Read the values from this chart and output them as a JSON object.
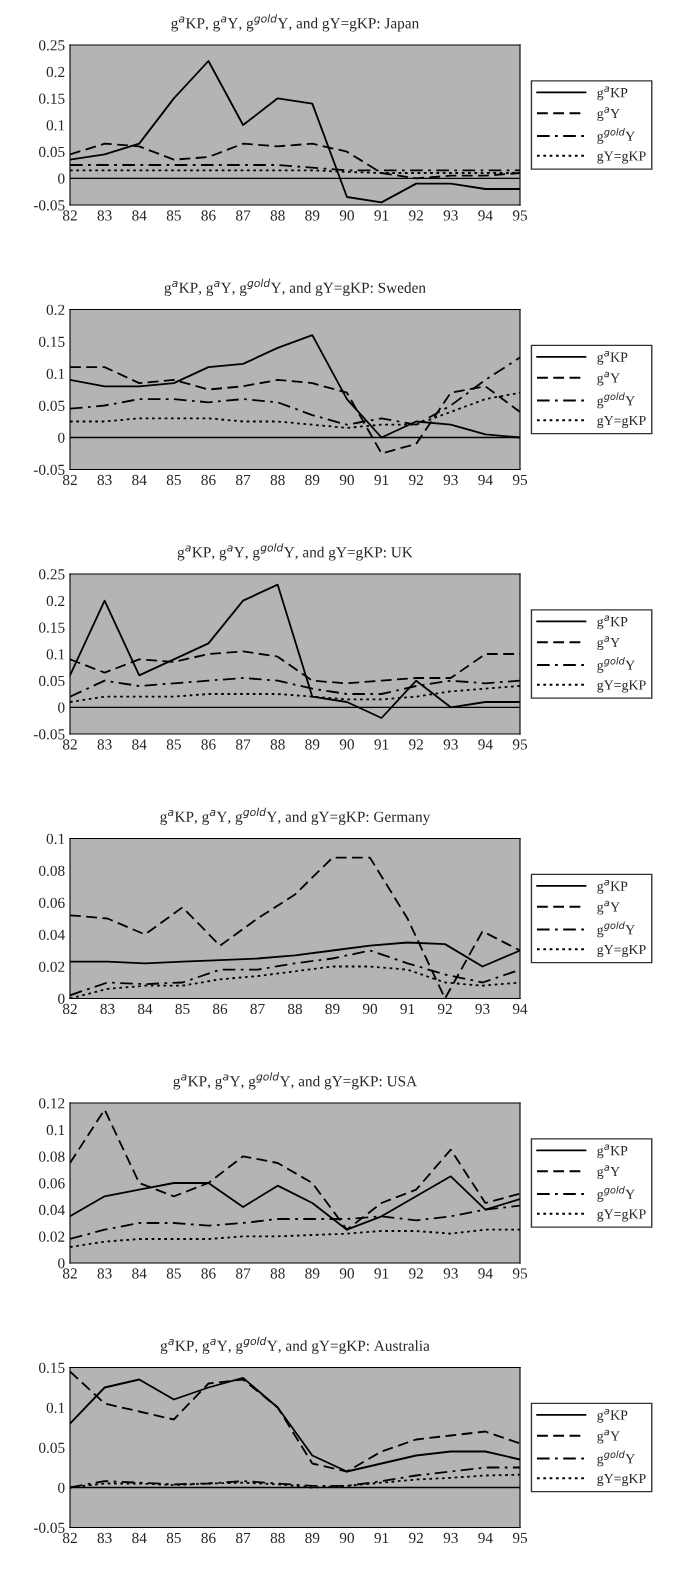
{
  "chart_data": [
    {
      "type": "line",
      "title": "g$^{a}$KP, g$^{a}$Y, g$^{gold}$Y, and gY=gKP: Japan",
      "categories": [
        "82",
        "83",
        "84",
        "85",
        "86",
        "87",
        "88",
        "89",
        "90",
        "91",
        "92",
        "93",
        "94",
        "95"
      ],
      "ylim": [
        -0.05,
        0.25
      ],
      "yticks": [
        -0.05,
        0,
        0.05,
        0.1,
        0.15,
        0.2,
        0.25
      ],
      "legend": "right",
      "ref_lines": [
        {
          "axis": "y",
          "value": 0,
          "color": "#000000"
        }
      ],
      "series": [
        {
          "name": "g$^{a}$KP",
          "color": "#000000",
          "line_style": "solid",
          "values": [
            0.035,
            0.045,
            0.065,
            0.15,
            0.22,
            0.1,
            0.15,
            0.14,
            -0.035,
            -0.045,
            -0.01,
            -0.01,
            -0.02,
            -0.02
          ]
        },
        {
          "name": "g$^{a}$Y",
          "color": "#000000",
          "line_style": "dashed",
          "values": [
            0.045,
            0.065,
            0.06,
            0.035,
            0.04,
            0.065,
            0.06,
            0.065,
            0.05,
            0.01,
            0.0,
            0.005,
            0.005,
            0.01
          ]
        },
        {
          "name": "g$^{gold}$Y",
          "color": "#000000",
          "line_style": "dashdot",
          "values": [
            0.025,
            0.025,
            0.025,
            0.025,
            0.025,
            0.025,
            0.025,
            0.02,
            0.015,
            0.015,
            0.015,
            0.015,
            0.015,
            0.015
          ]
        },
        {
          "name": "gY=gKP",
          "color": "#000000",
          "line_style": "dotted",
          "values": [
            0.015,
            0.015,
            0.015,
            0.015,
            0.015,
            0.015,
            0.015,
            0.015,
            0.012,
            0.01,
            0.01,
            0.01,
            0.01,
            0.01
          ]
        }
      ]
    },
    {
      "type": "line",
      "title": "g$^{a}$KP, g$^{a}$Y, g$^{gold}$Y, and gY=gKP: Sweden",
      "categories": [
        "82",
        "83",
        "84",
        "85",
        "86",
        "87",
        "88",
        "89",
        "90",
        "91",
        "92",
        "93",
        "94",
        "95"
      ],
      "ylim": [
        -0.05,
        0.2
      ],
      "yticks": [
        -0.05,
        0,
        0.05,
        0.1,
        0.15,
        0.2
      ],
      "legend": "right",
      "ref_lines": [
        {
          "axis": "y",
          "value": 0,
          "color": "#000000"
        }
      ],
      "series": [
        {
          "name": "g$^{a}$KP",
          "color": "#000000",
          "line_style": "solid",
          "values": [
            0.09,
            0.08,
            0.08,
            0.085,
            0.11,
            0.115,
            0.14,
            0.16,
            0.06,
            0.0,
            0.025,
            0.02,
            0.005,
            0.0
          ]
        },
        {
          "name": "g$^{a}$Y",
          "color": "#000000",
          "line_style": "dashed",
          "values": [
            0.11,
            0.11,
            0.085,
            0.09,
            0.075,
            0.08,
            0.09,
            0.085,
            0.07,
            -0.025,
            -0.01,
            0.07,
            0.08,
            0.04
          ]
        },
        {
          "name": "g$^{gold}$Y",
          "color": "#000000",
          "line_style": "dashdot",
          "values": [
            0.045,
            0.05,
            0.06,
            0.06,
            0.055,
            0.06,
            0.055,
            0.035,
            0.02,
            0.03,
            0.02,
            0.05,
            0.09,
            0.125
          ]
        },
        {
          "name": "gY=gKP",
          "color": "#000000",
          "line_style": "dotted",
          "values": [
            0.025,
            0.025,
            0.03,
            0.03,
            0.03,
            0.025,
            0.025,
            0.02,
            0.015,
            0.02,
            0.02,
            0.04,
            0.06,
            0.07
          ]
        }
      ]
    },
    {
      "type": "line",
      "title": "g$^{a}$KP, g$^{a}$Y, g$^{gold}$Y, and gY=gKP: UK",
      "categories": [
        "82",
        "83",
        "84",
        "85",
        "86",
        "87",
        "88",
        "89",
        "90",
        "91",
        "92",
        "93",
        "94",
        "95"
      ],
      "ylim": [
        -0.05,
        0.25
      ],
      "yticks": [
        -0.05,
        0,
        0.05,
        0.1,
        0.15,
        0.2,
        0.25
      ],
      "legend": "right",
      "ref_lines": [
        {
          "axis": "y",
          "value": 0,
          "color": "#000000"
        }
      ],
      "series": [
        {
          "name": "g$^{a}$KP",
          "color": "#000000",
          "line_style": "solid",
          "values": [
            0.06,
            0.2,
            0.06,
            0.09,
            0.12,
            0.2,
            0.23,
            0.02,
            0.01,
            -0.02,
            0.05,
            0.0,
            0.01,
            0.01
          ]
        },
        {
          "name": "g$^{a}$Y",
          "color": "#000000",
          "line_style": "dashed",
          "values": [
            0.09,
            0.065,
            0.09,
            0.085,
            0.1,
            0.105,
            0.095,
            0.05,
            0.045,
            0.05,
            0.055,
            0.055,
            0.1,
            0.1
          ]
        },
        {
          "name": "g$^{gold}$Y",
          "color": "#000000",
          "line_style": "dashdot",
          "values": [
            0.02,
            0.05,
            0.04,
            0.045,
            0.05,
            0.055,
            0.05,
            0.035,
            0.025,
            0.025,
            0.04,
            0.05,
            0.045,
            0.05
          ]
        },
        {
          "name": "gY=gKP",
          "color": "#000000",
          "line_style": "dotted",
          "values": [
            0.01,
            0.02,
            0.02,
            0.02,
            0.025,
            0.025,
            0.025,
            0.02,
            0.015,
            0.015,
            0.02,
            0.03,
            0.035,
            0.04
          ]
        }
      ]
    },
    {
      "type": "line",
      "title": "g$^{a}$KP, g$^{a}$Y, g$^{gold}$Y, and gY=gKP: Germany",
      "categories": [
        "82",
        "83",
        "84",
        "85",
        "86",
        "87",
        "88",
        "89",
        "90",
        "91",
        "92",
        "93",
        "94"
      ],
      "ylim": [
        0,
        0.1
      ],
      "yticks": [
        0,
        0.02,
        0.04,
        0.06,
        0.08,
        0.1
      ],
      "legend": "right",
      "series": [
        {
          "name": "g$^{a}$KP",
          "color": "#000000",
          "line_style": "solid",
          "values": [
            0.023,
            0.023,
            0.022,
            0.023,
            0.024,
            0.025,
            0.027,
            0.03,
            0.033,
            0.035,
            0.034,
            0.02,
            0.03
          ]
        },
        {
          "name": "g$^{a}$Y",
          "color": "#000000",
          "line_style": "dashed",
          "values": [
            0.052,
            0.05,
            0.04,
            0.057,
            0.033,
            0.05,
            0.065,
            0.088,
            0.088,
            0.05,
            0.0,
            0.042,
            0.03
          ]
        },
        {
          "name": "g$^{gold}$Y",
          "color": "#000000",
          "line_style": "dashdot",
          "values": [
            0.002,
            0.01,
            0.009,
            0.01,
            0.018,
            0.018,
            0.022,
            0.025,
            0.03,
            0.022,
            0.015,
            0.01,
            0.018
          ]
        },
        {
          "name": "gY=gKP",
          "color": "#000000",
          "line_style": "dotted",
          "values": [
            0.0,
            0.006,
            0.008,
            0.008,
            0.012,
            0.014,
            0.017,
            0.02,
            0.02,
            0.018,
            0.01,
            0.008,
            0.01
          ]
        }
      ]
    },
    {
      "type": "line",
      "title": "g$^{a}$KP, g$^{a}$Y, g$^{gold}$Y, and gY=gKP: USA",
      "categories": [
        "82",
        "83",
        "84",
        "85",
        "86",
        "87",
        "88",
        "89",
        "90",
        "91",
        "92",
        "93",
        "94",
        "95"
      ],
      "ylim": [
        0,
        0.12
      ],
      "yticks": [
        0,
        0.02,
        0.04,
        0.06,
        0.08,
        0.1,
        0.12
      ],
      "legend": "right",
      "series": [
        {
          "name": "g$^{a}$KP",
          "color": "#000000",
          "line_style": "solid",
          "values": [
            0.035,
            0.05,
            0.055,
            0.06,
            0.06,
            0.042,
            0.058,
            0.045,
            0.025,
            0.035,
            0.05,
            0.065,
            0.04,
            0.048
          ]
        },
        {
          "name": "g$^{a}$Y",
          "color": "#000000",
          "line_style": "dashed",
          "values": [
            0.075,
            0.115,
            0.06,
            0.05,
            0.06,
            0.08,
            0.075,
            0.06,
            0.025,
            0.045,
            0.055,
            0.085,
            0.045,
            0.052
          ]
        },
        {
          "name": "g$^{gold}$Y",
          "color": "#000000",
          "line_style": "dashdot",
          "values": [
            0.018,
            0.025,
            0.03,
            0.03,
            0.028,
            0.03,
            0.033,
            0.033,
            0.033,
            0.035,
            0.032,
            0.035,
            0.04,
            0.043
          ]
        },
        {
          "name": "gY=gKP",
          "color": "#000000",
          "line_style": "dotted",
          "values": [
            0.012,
            0.016,
            0.018,
            0.018,
            0.018,
            0.02,
            0.02,
            0.021,
            0.022,
            0.024,
            0.024,
            0.022,
            0.025,
            0.025
          ]
        }
      ]
    },
    {
      "type": "line",
      "title": "g$^{a}$KP, g$^{a}$Y, g$^{gold}$Y, and gY=gKP: Australia",
      "categories": [
        "82",
        "83",
        "84",
        "85",
        "86",
        "87",
        "88",
        "89",
        "90",
        "91",
        "92",
        "93",
        "94",
        "95"
      ],
      "ylim": [
        -0.05,
        0.15
      ],
      "yticks": [
        -0.05,
        0,
        0.05,
        0.1,
        0.15
      ],
      "legend": "right",
      "ref_lines": [
        {
          "axis": "y",
          "value": 0,
          "color": "#000000"
        }
      ],
      "series": [
        {
          "name": "g$^{a}$KP",
          "color": "#000000",
          "line_style": "solid",
          "values": [
            0.08,
            0.125,
            0.135,
            0.11,
            0.125,
            0.137,
            0.1,
            0.04,
            0.02,
            0.03,
            0.04,
            0.045,
            0.045,
            0.035
          ]
        },
        {
          "name": "g$^{a}$Y",
          "color": "#000000",
          "line_style": "dashed",
          "values": [
            0.145,
            0.105,
            0.095,
            0.085,
            0.13,
            0.135,
            0.1,
            0.03,
            0.02,
            0.045,
            0.06,
            0.065,
            0.07,
            0.055
          ]
        },
        {
          "name": "g$^{gold}$Y",
          "color": "#000000",
          "line_style": "dashdot",
          "values": [
            0.0,
            0.008,
            0.006,
            0.004,
            0.005,
            0.008,
            0.005,
            0.002,
            0.002,
            0.008,
            0.015,
            0.02,
            0.025,
            0.025
          ]
        },
        {
          "name": "gY=gKP",
          "color": "#000000",
          "line_style": "dotted",
          "values": [
            0.0,
            0.005,
            0.005,
            0.003,
            0.005,
            0.006,
            0.004,
            0.0,
            0.002,
            0.006,
            0.01,
            0.012,
            0.015,
            0.016
          ]
        }
      ]
    }
  ]
}
